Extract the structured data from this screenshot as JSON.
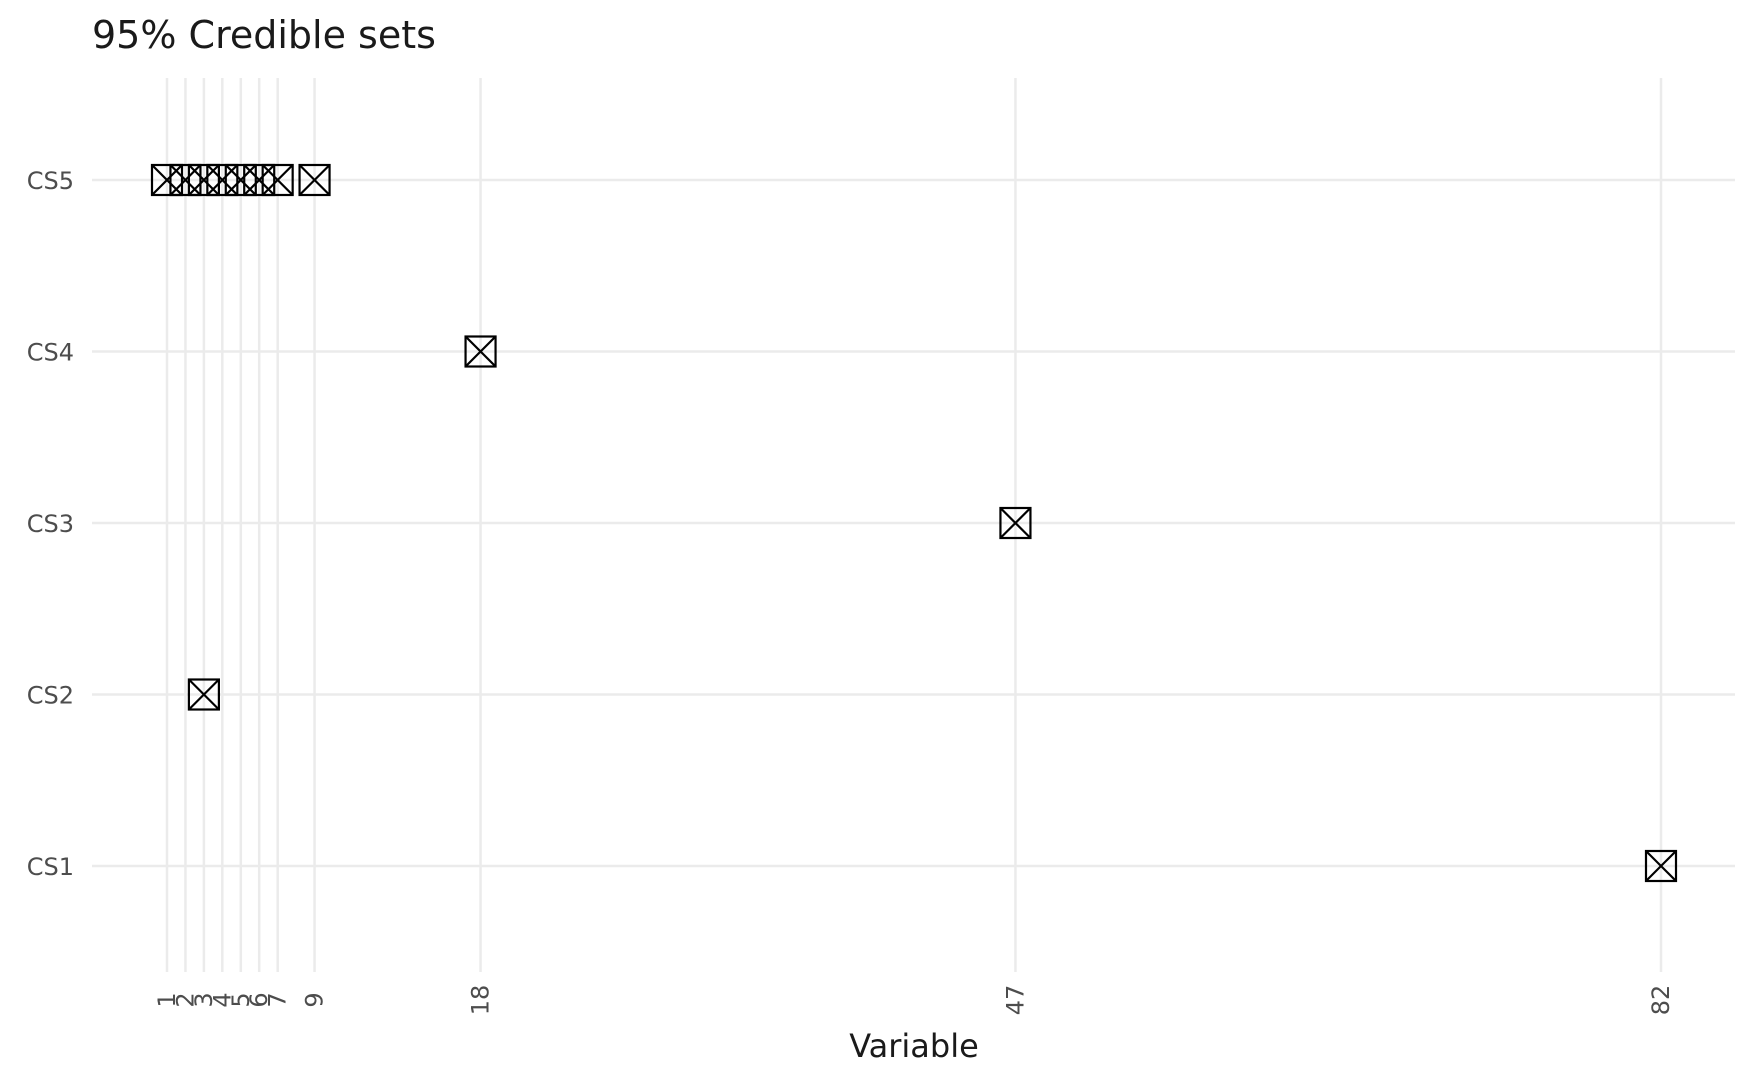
{
  "chart_data": {
    "type": "scatter",
    "title": "95% Credible sets",
    "xlabel": "Variable",
    "ylabel": "",
    "x_ticks": [
      1,
      2,
      3,
      4,
      5,
      6,
      7,
      9,
      18,
      47,
      82
    ],
    "y_categories": [
      "CS1",
      "CS2",
      "CS3",
      "CS4",
      "CS5"
    ],
    "xlim": [
      -3,
      86
    ],
    "marker": "square-cross",
    "grid": true,
    "points": [
      {
        "x": 82,
        "y": "CS1"
      },
      {
        "x": 3,
        "y": "CS2"
      },
      {
        "x": 47,
        "y": "CS3"
      },
      {
        "x": 18,
        "y": "CS4"
      },
      {
        "x": 1,
        "y": "CS5"
      },
      {
        "x": 2,
        "y": "CS5"
      },
      {
        "x": 3,
        "y": "CS5"
      },
      {
        "x": 4,
        "y": "CS5"
      },
      {
        "x": 5,
        "y": "CS5"
      },
      {
        "x": 6,
        "y": "CS5"
      },
      {
        "x": 7,
        "y": "CS5"
      },
      {
        "x": 9,
        "y": "CS5"
      }
    ]
  }
}
